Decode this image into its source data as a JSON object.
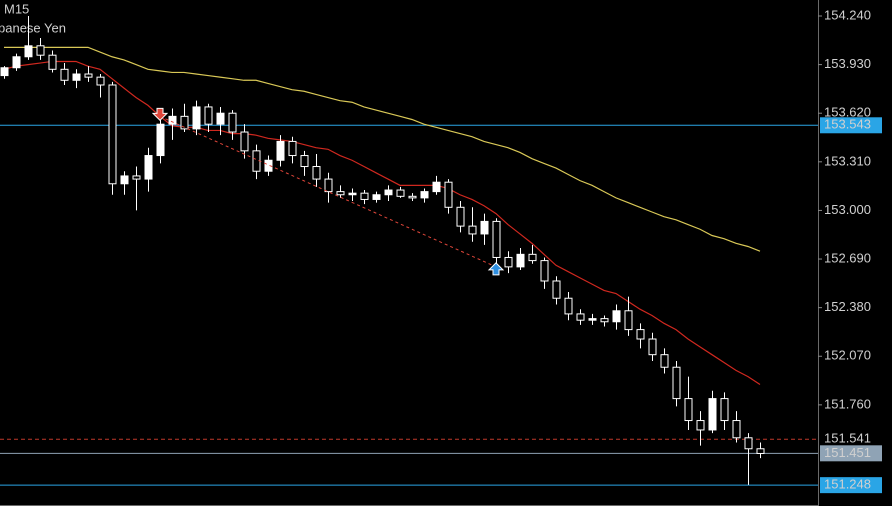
{
  "chart_data": {
    "type": "candlestick",
    "title": "M15",
    "subtitle": "panese Yen",
    "ylim": [
      151.115,
      154.342
    ],
    "yticks": [
      {
        "value": 154.24,
        "label": "154.240"
      },
      {
        "value": 153.93,
        "label": "153.930"
      },
      {
        "value": 153.62,
        "label": "153.620"
      },
      {
        "value": 153.31,
        "label": "153.310"
      },
      {
        "value": 153.0,
        "label": "153.000"
      },
      {
        "value": 152.69,
        "label": "152.690"
      },
      {
        "value": 152.38,
        "label": "152.380"
      },
      {
        "value": 152.07,
        "label": "152.070"
      },
      {
        "value": 151.76,
        "label": "151.760"
      }
    ],
    "up_color": "#ffffff",
    "down_color": "#000000",
    "wick_color": "#ffffff",
    "candles": [
      [
        153.86,
        153.92,
        153.84,
        153.91
      ],
      [
        153.91,
        154.0,
        153.89,
        153.98
      ],
      [
        153.98,
        154.24,
        153.96,
        154.05
      ],
      [
        154.05,
        154.1,
        153.96,
        153.99
      ],
      [
        153.99,
        154.02,
        153.88,
        153.9
      ],
      [
        153.9,
        153.94,
        153.8,
        153.83
      ],
      [
        153.83,
        153.9,
        153.78,
        153.87
      ],
      [
        153.87,
        153.92,
        153.82,
        153.85
      ],
      [
        153.85,
        153.87,
        153.72,
        153.8
      ],
      [
        153.8,
        153.82,
        153.1,
        153.17
      ],
      [
        153.17,
        153.25,
        153.1,
        153.22
      ],
      [
        153.22,
        153.28,
        153.0,
        153.2
      ],
      [
        153.2,
        153.4,
        153.12,
        153.35
      ],
      [
        153.35,
        153.58,
        153.3,
        153.55
      ],
      [
        153.55,
        153.65,
        153.45,
        153.6
      ],
      [
        153.6,
        153.68,
        153.5,
        153.52
      ],
      [
        153.52,
        153.7,
        153.48,
        153.66
      ],
      [
        153.66,
        153.68,
        153.5,
        153.55
      ],
      [
        153.55,
        153.66,
        153.48,
        153.62
      ],
      [
        153.62,
        153.64,
        153.45,
        153.5
      ],
      [
        153.5,
        153.55,
        153.33,
        153.38
      ],
      [
        153.38,
        153.42,
        153.2,
        153.25
      ],
      [
        153.25,
        153.35,
        153.22,
        153.32
      ],
      [
        153.32,
        153.48,
        153.28,
        153.44
      ],
      [
        153.44,
        153.47,
        153.3,
        153.35
      ],
      [
        153.35,
        153.38,
        153.22,
        153.28
      ],
      [
        153.28,
        153.36,
        153.15,
        153.2
      ],
      [
        153.2,
        153.24,
        153.05,
        153.12
      ],
      [
        153.12,
        153.16,
        153.08,
        153.1
      ],
      [
        153.1,
        153.14,
        153.06,
        153.11
      ],
      [
        153.11,
        153.13,
        153.04,
        153.07
      ],
      [
        153.07,
        153.12,
        153.05,
        153.1
      ],
      [
        153.1,
        153.16,
        153.06,
        153.13
      ],
      [
        153.13,
        153.15,
        153.08,
        153.09
      ],
      [
        153.09,
        153.11,
        153.06,
        153.08
      ],
      [
        153.08,
        153.14,
        153.05,
        153.12
      ],
      [
        153.12,
        153.22,
        153.1,
        153.18
      ],
      [
        153.18,
        153.2,
        152.98,
        153.02
      ],
      [
        153.02,
        153.06,
        152.86,
        152.9
      ],
      [
        152.9,
        153.02,
        152.8,
        152.85
      ],
      [
        152.85,
        152.98,
        152.78,
        152.93
      ],
      [
        152.93,
        152.95,
        152.66,
        152.7
      ],
      [
        152.7,
        152.74,
        152.6,
        152.64
      ],
      [
        152.64,
        152.76,
        152.62,
        152.72
      ],
      [
        152.72,
        152.78,
        152.66,
        152.68
      ],
      [
        152.68,
        152.7,
        152.5,
        152.55
      ],
      [
        152.55,
        152.58,
        152.4,
        152.44
      ],
      [
        152.44,
        152.48,
        152.3,
        152.34
      ],
      [
        152.34,
        152.37,
        152.27,
        152.3
      ],
      [
        152.3,
        152.34,
        152.27,
        152.31
      ],
      [
        152.31,
        152.33,
        152.26,
        152.29
      ],
      [
        152.29,
        152.4,
        152.24,
        152.36
      ],
      [
        152.36,
        152.45,
        152.2,
        152.24
      ],
      [
        152.24,
        152.28,
        152.12,
        152.18
      ],
      [
        152.18,
        152.22,
        152.04,
        152.08
      ],
      [
        152.08,
        152.12,
        151.96,
        152.0
      ],
      [
        152.0,
        152.04,
        151.75,
        151.8
      ],
      [
        151.8,
        151.94,
        151.6,
        151.66
      ],
      [
        151.66,
        151.72,
        151.5,
        151.6
      ],
      [
        151.6,
        151.85,
        151.58,
        151.8
      ],
      [
        151.8,
        151.84,
        151.6,
        151.66
      ],
      [
        151.66,
        151.72,
        151.52,
        151.55
      ],
      [
        151.55,
        151.58,
        151.25,
        151.48
      ],
      [
        151.48,
        151.52,
        151.42,
        151.45
      ]
    ],
    "moving_averages": [
      {
        "color": "#d9c857",
        "values": [
          154.04,
          154.04,
          154.04,
          154.04,
          154.04,
          154.04,
          154.04,
          154.04,
          154.01,
          153.98,
          153.96,
          153.93,
          153.9,
          153.89,
          153.88,
          153.88,
          153.87,
          153.86,
          153.85,
          153.84,
          153.83,
          153.83,
          153.81,
          153.79,
          153.77,
          153.76,
          153.74,
          153.72,
          153.7,
          153.69,
          153.66,
          153.64,
          153.62,
          153.6,
          153.58,
          153.55,
          153.53,
          153.51,
          153.49,
          153.47,
          153.44,
          153.42,
          153.4,
          153.37,
          153.33,
          153.3,
          153.27,
          153.23,
          153.19,
          153.16,
          153.12,
          153.08,
          153.05,
          153.02,
          152.99,
          152.96,
          152.94,
          152.91,
          152.88,
          152.84,
          152.82,
          152.79,
          152.77,
          152.74
        ]
      },
      {
        "color": "#d0281f",
        "values": [
          153.9,
          153.92,
          153.93,
          153.94,
          153.95,
          153.95,
          153.95,
          153.92,
          153.9,
          153.84,
          153.78,
          153.72,
          153.67,
          153.6,
          153.54,
          153.53,
          153.53,
          153.51,
          153.51,
          153.49,
          153.49,
          153.48,
          153.46,
          153.45,
          153.44,
          153.42,
          153.4,
          153.39,
          153.35,
          153.32,
          153.28,
          153.24,
          153.2,
          153.16,
          153.16,
          153.16,
          153.16,
          153.14,
          153.1,
          153.07,
          153.03,
          152.98,
          152.91,
          152.85,
          152.79,
          152.72,
          152.65,
          152.61,
          152.57,
          152.53,
          152.49,
          152.47,
          152.42,
          152.37,
          152.33,
          152.28,
          152.24,
          152.18,
          152.13,
          152.08,
          152.03,
          151.98,
          151.94,
          151.89
        ]
      }
    ],
    "signals": [
      {
        "candle": 13,
        "price": 153.6,
        "color": "#e0463a"
      },
      {
        "candle": 41,
        "price": 152.64,
        "color": "#2f8fe0"
      }
    ],
    "levels": [
      {
        "value": 153.543,
        "color": "#2aa5e6",
        "style": "solid"
      },
      {
        "value": 151.541,
        "color": "#c0392b",
        "style": "dashed"
      },
      {
        "value": 151.451,
        "color": "#8fa3b5",
        "style": "solid"
      },
      {
        "value": 151.248,
        "color": "#2aa5e6",
        "style": "solid"
      }
    ]
  }
}
